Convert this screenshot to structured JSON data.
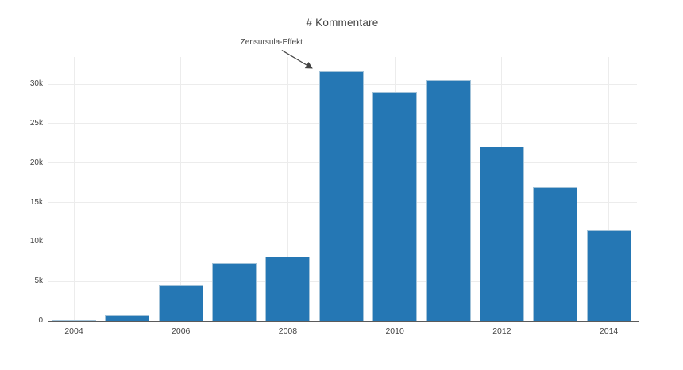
{
  "chart_data": {
    "type": "bar",
    "title": "# Kommentare",
    "categories": [
      "2004",
      "2005",
      "2006",
      "2007",
      "2008",
      "2009",
      "2010",
      "2011",
      "2012",
      "2013",
      "2014"
    ],
    "values": [
      150,
      700,
      4500,
      7300,
      8100,
      31600,
      29000,
      30500,
      22100,
      17000,
      11500
    ],
    "xlabel": "",
    "ylabel": "",
    "xtick_labels": [
      "2004",
      "2006",
      "2008",
      "2010",
      "2012",
      "2014"
    ],
    "ytick_labels": [
      "0",
      "5k",
      "10k",
      "15k",
      "20k",
      "25k",
      "30k"
    ],
    "ytick_values": [
      0,
      5000,
      10000,
      15000,
      20000,
      25000,
      30000
    ],
    "ylim": [
      0,
      33400
    ],
    "grid": true,
    "legend_position": "none",
    "annotation": {
      "text": "Zensursula-Effekt",
      "target_category": "2009"
    },
    "colors": {
      "bar_fill": "#2577b4",
      "bar_edge": "#a3c3d9",
      "gridline": "#ececec",
      "axis_line": "#5b5b5b",
      "tick_label": "#444444",
      "title": "#444444",
      "annotation": "#444444",
      "background": "#ffffff"
    }
  }
}
